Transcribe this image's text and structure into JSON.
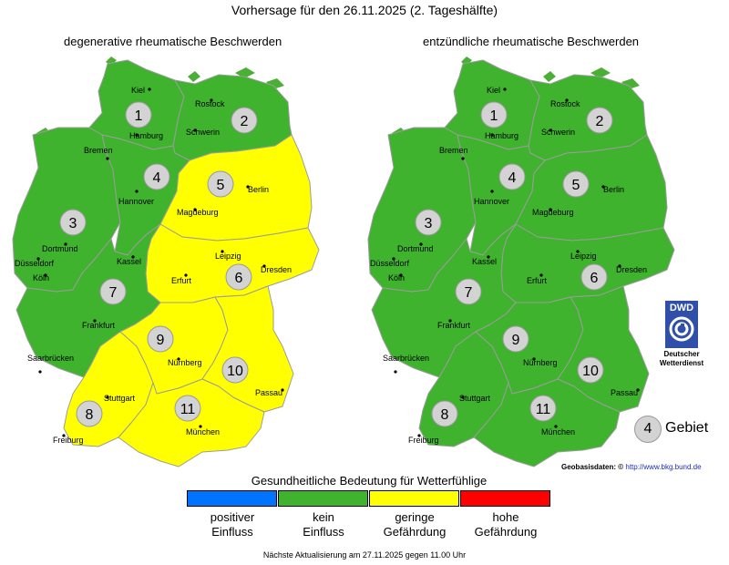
{
  "title": "Vorhersage für den 26.11.2025 (2. Tageshälfte)",
  "maps": [
    {
      "title": "degenerative rheumatische Beschwerden",
      "regions": [
        {
          "id": "1",
          "level": "kein Einfluss"
        },
        {
          "id": "2",
          "level": "kein Einfluss"
        },
        {
          "id": "3",
          "level": "kein Einfluss"
        },
        {
          "id": "4",
          "level": "kein Einfluss"
        },
        {
          "id": "5",
          "level": "geringe Gefährdung"
        },
        {
          "id": "6",
          "level": "geringe Gefährdung"
        },
        {
          "id": "7",
          "level": "kein Einfluss"
        },
        {
          "id": "8",
          "level": "geringe Gefährdung"
        },
        {
          "id": "9",
          "level": "geringe Gefährdung"
        },
        {
          "id": "10",
          "level": "geringe Gefährdung"
        },
        {
          "id": "11",
          "level": "geringe Gefährdung"
        }
      ]
    },
    {
      "title": "entzündliche rheumatische Beschwerden",
      "regions": [
        {
          "id": "1",
          "level": "kein Einfluss"
        },
        {
          "id": "2",
          "level": "kein Einfluss"
        },
        {
          "id": "3",
          "level": "kein Einfluss"
        },
        {
          "id": "4",
          "level": "kein Einfluss"
        },
        {
          "id": "5",
          "level": "kein Einfluss"
        },
        {
          "id": "6",
          "level": "kein Einfluss"
        },
        {
          "id": "7",
          "level": "kein Einfluss"
        },
        {
          "id": "8",
          "level": "kein Einfluss"
        },
        {
          "id": "9",
          "level": "kein Einfluss"
        },
        {
          "id": "10",
          "level": "kein Einfluss"
        },
        {
          "id": "11",
          "level": "kein Einfluss"
        }
      ]
    }
  ],
  "cities": [
    "Kiel",
    "Rostock",
    "Hamburg",
    "Schwerin",
    "Bremen",
    "Hannover",
    "Berlin",
    "Magdeburg",
    "Dortmund",
    "Düsseldorf",
    "Köln",
    "Kassel",
    "Leipzig",
    "Dresden",
    "Erfurt",
    "Frankfurt",
    "Saarbrücken",
    "Nürnberg",
    "Passau",
    "Stuttgart",
    "Freiburg",
    "München"
  ],
  "legend": {
    "title": "Gesundheitliche Bedeutung für Wetterfühlige",
    "items": [
      {
        "label": "positiver Einfluss",
        "line1": "positiver",
        "line2": "Einfluss",
        "color": "#0073ff"
      },
      {
        "label": "kein Einfluss",
        "line1": "kein",
        "line2": "Einfluss",
        "color": "#3fb22e"
      },
      {
        "label": "geringe Gefährdung",
        "line1": "geringe",
        "line2": "Gefährdung",
        "color": "#ffff00"
      },
      {
        "label": "hohe Gefährdung",
        "line1": "hohe",
        "line2": "Gefährdung",
        "color": "#ff0000"
      }
    ]
  },
  "key": {
    "sample_number": "4",
    "label": "Gebiet"
  },
  "dwd": {
    "logo_text": "DWD",
    "line1": "Deutscher",
    "line2": "Wetterdienst"
  },
  "geobasis": {
    "label": "Geobasisdaten: ©",
    "link": "http://www.bkg.bund.de"
  },
  "footer": "Nächste Aktualisierung am 27.11.2025 gegen 11.00 Uhr"
}
